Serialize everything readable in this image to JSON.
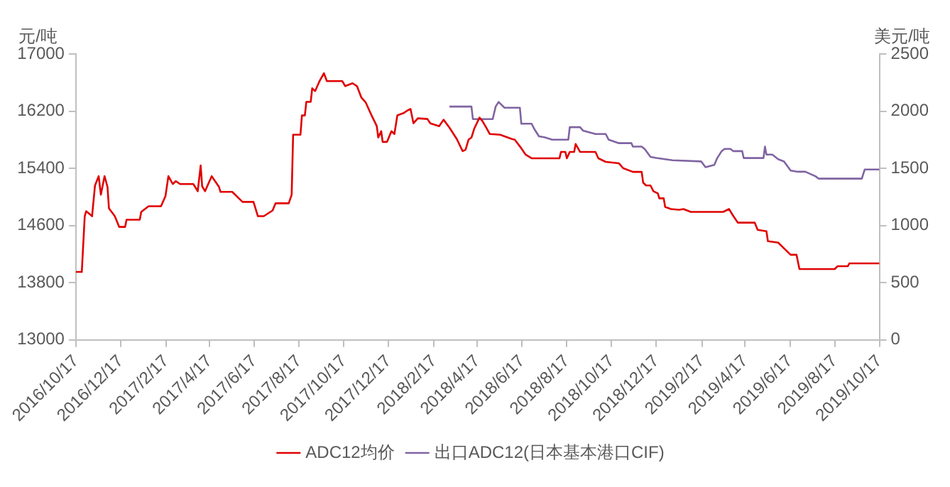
{
  "chart_data": {
    "type": "line",
    "ylabel": "元/吨",
    "y2label": "美元/吨",
    "legend": "bottom",
    "marker": "none",
    "line_style": "solid",
    "xlim": [
      "2016-10-17",
      "2019-10-17"
    ],
    "xticks": [
      {
        "value": "2016-10-17",
        "label": "2016/10/17"
      },
      {
        "value": "2016-12-17",
        "label": "2016/12/17"
      },
      {
        "value": "2017-02-17",
        "label": "2017/2/17"
      },
      {
        "value": "2017-04-17",
        "label": "2017/4/17"
      },
      {
        "value": "2017-06-17",
        "label": "2017/6/17"
      },
      {
        "value": "2017-08-17",
        "label": "2017/8/17"
      },
      {
        "value": "2017-10-17",
        "label": "2017/10/17"
      },
      {
        "value": "2017-12-17",
        "label": "2017/12/17"
      },
      {
        "value": "2018-02-17",
        "label": "2018/2/17"
      },
      {
        "value": "2018-04-17",
        "label": "2018/4/17"
      },
      {
        "value": "2018-06-17",
        "label": "2018/6/17"
      },
      {
        "value": "2018-08-17",
        "label": "2018/8/17"
      },
      {
        "value": "2018-10-17",
        "label": "2018/10/17"
      },
      {
        "value": "2018-12-17",
        "label": "2018/12/17"
      },
      {
        "value": "2019-02-17",
        "label": "2019/2/17"
      },
      {
        "value": "2019-04-17",
        "label": "2019/4/17"
      },
      {
        "value": "2019-06-17",
        "label": "2019/6/17"
      },
      {
        "value": "2019-08-17",
        "label": "2019/8/17"
      },
      {
        "value": "2019-10-17",
        "label": "2019/10/17"
      }
    ],
    "ylim": [
      13000,
      17000
    ],
    "yticks": [
      13000,
      13800,
      14600,
      15400,
      16200,
      17000
    ],
    "y2lim": [
      0,
      2500
    ],
    "y2ticks": [
      0,
      500,
      1000,
      1500,
      2000,
      2500
    ],
    "series": [
      {
        "name": "ADC12均价",
        "color": "#e00000",
        "x": [
          "2016-10-17",
          "2016-10-25",
          "2016-10-29",
          "2016-10-31",
          "2016-11-08",
          "2016-11-12",
          "2016-11-17",
          "2016-11-20",
          "2016-11-25",
          "2016-11-29",
          "2016-12-01",
          "2016-12-09",
          "2016-12-15",
          "2016-12-23",
          "2016-12-25",
          "2017-01-12",
          "2017-01-14",
          "2017-01-24",
          "2017-02-10",
          "2017-02-16",
          "2017-02-20",
          "2017-02-26",
          "2017-03-02",
          "2017-03-08",
          "2017-03-26",
          "2017-04-01",
          "2017-04-05",
          "2017-04-07",
          "2017-04-11",
          "2017-04-20",
          "2017-04-30",
          "2017-05-02",
          "2017-05-18",
          "2017-06-01",
          "2017-06-16",
          "2017-06-22",
          "2017-06-30",
          "2017-07-12",
          "2017-07-16",
          "2017-08-03",
          "2017-08-07",
          "2017-08-09",
          "2017-08-19",
          "2017-08-21",
          "2017-08-25",
          "2017-08-27",
          "2017-09-02",
          "2017-09-04",
          "2017-09-08",
          "2017-09-14",
          "2017-09-20",
          "2017-09-24",
          "2017-10-15",
          "2017-10-19",
          "2017-10-29",
          "2017-11-04",
          "2017-11-10",
          "2017-11-16",
          "2017-11-23",
          "2017-12-01",
          "2017-12-03",
          "2017-12-07",
          "2017-12-09",
          "2017-12-15",
          "2017-12-21",
          "2017-12-25",
          "2017-12-29",
          "2018-01-06",
          "2018-01-12",
          "2018-01-16",
          "2018-01-20",
          "2018-01-26",
          "2018-02-08",
          "2018-02-12",
          "2018-02-24",
          "2018-03-02",
          "2018-03-10",
          "2018-03-20",
          "2018-03-28",
          "2018-04-01",
          "2018-04-05",
          "2018-04-09",
          "2018-04-13",
          "2018-04-20",
          "2018-04-24",
          "2018-04-28",
          "2018-05-04",
          "2018-05-18",
          "2018-06-03",
          "2018-06-07",
          "2018-06-16",
          "2018-06-22",
          "2018-06-30",
          "2018-08-07",
          "2018-08-09",
          "2018-08-15",
          "2018-08-17",
          "2018-08-21",
          "2018-08-27",
          "2018-08-29",
          "2018-09-04",
          "2018-09-25",
          "2018-09-29",
          "2018-10-09",
          "2018-10-27",
          "2018-11-02",
          "2018-11-15",
          "2018-11-27",
          "2018-11-29",
          "2018-12-03",
          "2018-12-09",
          "2018-12-13",
          "2018-12-19",
          "2018-12-21",
          "2018-12-27",
          "2018-12-29",
          "2019-01-06",
          "2019-01-17",
          "2019-01-23",
          "2019-02-02",
          "2019-03-18",
          "2019-03-26",
          "2019-04-01",
          "2019-04-07",
          "2019-04-30",
          "2019-05-04",
          "2019-05-16",
          "2019-05-18",
          "2019-06-01",
          "2019-06-09",
          "2019-06-18",
          "2019-06-26",
          "2019-06-30",
          "2019-08-17",
          "2019-08-21",
          "2019-09-04",
          "2019-09-06",
          "2019-10-17"
        ],
        "values": [
          13950,
          13950,
          14730,
          14800,
          14730,
          15160,
          15290,
          15030,
          15290,
          15140,
          14840,
          14730,
          14580,
          14580,
          14680,
          14680,
          14790,
          14870,
          14870,
          15010,
          15290,
          15180,
          15220,
          15180,
          15180,
          15080,
          15440,
          15150,
          15080,
          15290,
          15140,
          15070,
          15070,
          14930,
          14930,
          14730,
          14730,
          14810,
          14910,
          14910,
          15030,
          15870,
          15870,
          16140,
          16140,
          16330,
          16330,
          16520,
          16480,
          16620,
          16730,
          16620,
          16620,
          16550,
          16590,
          16550,
          16390,
          16320,
          16160,
          15990,
          15830,
          15920,
          15770,
          15770,
          15920,
          15880,
          16140,
          16170,
          16210,
          16230,
          16030,
          16100,
          16090,
          16030,
          15990,
          16080,
          15970,
          15810,
          15640,
          15660,
          15800,
          15830,
          15960,
          16110,
          16060,
          15990,
          15880,
          15870,
          15810,
          15800,
          15680,
          15590,
          15540,
          15540,
          15630,
          15630,
          15540,
          15630,
          15630,
          15740,
          15630,
          15630,
          15540,
          15490,
          15470,
          15400,
          15350,
          15350,
          15200,
          15160,
          15160,
          15080,
          15050,
          14980,
          14980,
          14860,
          14830,
          14820,
          14830,
          14790,
          14790,
          14830,
          14730,
          14640,
          14640,
          14540,
          14520,
          14380,
          14360,
          14280,
          14190,
          14190,
          13990,
          13990,
          14030,
          14030,
          14070,
          14070
        ]
      },
      {
        "name": "出口ADC12(日本基本港口CIF)",
        "color": "#8064a2",
        "axis": "y2",
        "x": [
          "2018-03-10",
          "2018-04-09",
          "2018-04-11",
          "2018-05-08",
          "2018-05-12",
          "2018-05-16",
          "2018-05-24",
          "2018-06-14",
          "2018-06-16",
          "2018-06-30",
          "2018-07-04",
          "2018-07-10",
          "2018-07-18",
          "2018-07-28",
          "2018-08-19",
          "2018-08-21",
          "2018-09-04",
          "2018-09-08",
          "2018-09-25",
          "2018-10-09",
          "2018-10-13",
          "2018-10-27",
          "2018-11-13",
          "2018-11-15",
          "2018-11-27",
          "2018-12-01",
          "2018-12-09",
          "2018-12-17",
          "2019-01-08",
          "2019-02-16",
          "2019-02-22",
          "2019-03-06",
          "2019-03-10",
          "2019-03-16",
          "2019-03-20",
          "2019-03-28",
          "2019-04-01",
          "2019-04-13",
          "2019-04-15",
          "2019-05-12",
          "2019-05-14",
          "2019-05-16",
          "2019-05-24",
          "2019-06-01",
          "2019-06-09",
          "2019-06-18",
          "2019-06-28",
          "2019-07-08",
          "2019-07-22",
          "2019-07-26",
          "2019-09-23",
          "2019-09-27",
          "2019-10-17"
        ],
        "values": [
          2040,
          2040,
          1930,
          1930,
          2040,
          2080,
          2030,
          2030,
          1890,
          1890,
          1840,
          1780,
          1770,
          1750,
          1750,
          1860,
          1860,
          1830,
          1800,
          1800,
          1750,
          1720,
          1720,
          1690,
          1690,
          1670,
          1600,
          1590,
          1570,
          1560,
          1510,
          1530,
          1590,
          1650,
          1670,
          1670,
          1650,
          1650,
          1590,
          1590,
          1690,
          1620,
          1620,
          1580,
          1560,
          1480,
          1470,
          1470,
          1430,
          1410,
          1410,
          1490,
          1490
        ]
      }
    ]
  }
}
